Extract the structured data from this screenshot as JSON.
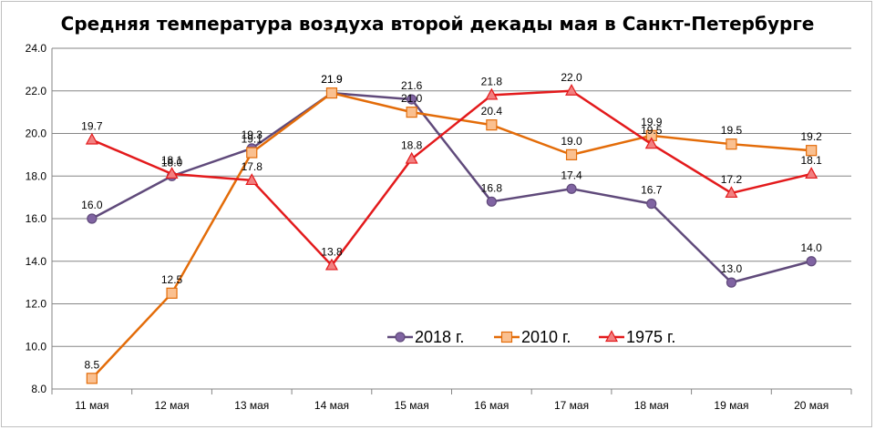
{
  "chart_data": {
    "type": "line",
    "title": "Средняя температура воздуха второй декады мая в Санкт-Петербурге",
    "xlabel": "",
    "ylabel": "",
    "categories": [
      "11 мая",
      "12 мая",
      "13 мая",
      "14 мая",
      "15 мая",
      "16 мая",
      "17 мая",
      "18 мая",
      "19 мая",
      "20 мая"
    ],
    "ylim": [
      8.0,
      24.0
    ],
    "yticks": [
      "8.0",
      "10.0",
      "12.0",
      "14.0",
      "16.0",
      "18.0",
      "20.0",
      "22.0",
      "24.0"
    ],
    "grid": true,
    "legend_position": "bottom-center",
    "series": [
      {
        "name": "2018 г.",
        "color": "#604a7b",
        "marker_fill": "#8064a2",
        "marker": "circle",
        "values": [
          16.0,
          18.0,
          19.3,
          21.9,
          21.6,
          16.8,
          17.4,
          16.7,
          13.0,
          14.0
        ],
        "labels": [
          "16.0",
          "18.0",
          "19.3",
          "21.9",
          "21.6",
          "16.8",
          "17.4",
          "16.7",
          "13.0",
          "14.0"
        ]
      },
      {
        "name": "2010 г.",
        "color": "#e36c09",
        "marker_fill": "#fac090",
        "marker": "square",
        "values": [
          8.5,
          12.5,
          19.1,
          21.9,
          21.0,
          20.4,
          19.0,
          19.9,
          19.5,
          19.2
        ],
        "labels": [
          "8.5",
          "12.5",
          "19.1",
          "21.9",
          "21.0",
          "20.4",
          "19.0",
          "19.9",
          "19.5",
          "19.2"
        ]
      },
      {
        "name": "1975 г.",
        "color": "#e31a1c",
        "marker_fill": "#f28080",
        "marker": "triangle",
        "values": [
          19.7,
          18.1,
          17.8,
          13.8,
          18.8,
          21.8,
          22.0,
          19.5,
          17.2,
          18.1
        ],
        "labels": [
          "19.7",
          "18.1",
          "17.8",
          "13.8",
          "18.8",
          "21.8",
          "22.0",
          "19.5",
          "17.2",
          "18.1"
        ]
      }
    ]
  }
}
